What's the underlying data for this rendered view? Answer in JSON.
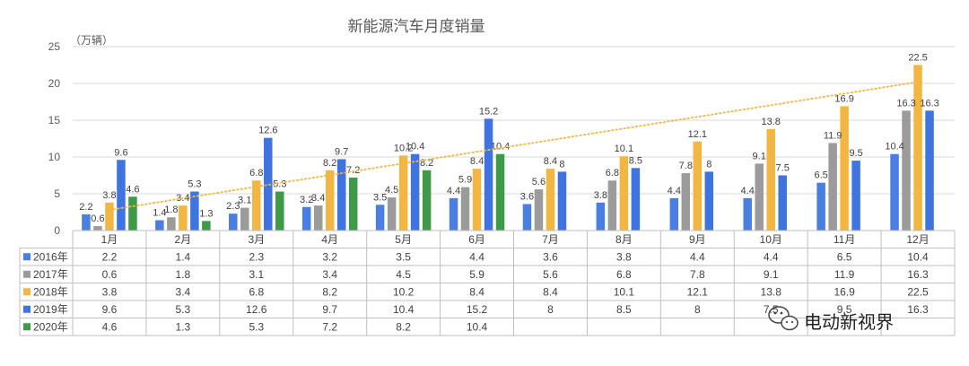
{
  "watermark": "电动新视界",
  "chart_data": {
    "type": "bar",
    "title": "新能源汽车月度销量",
    "ylabel": "（万辆）",
    "ylim": [
      0,
      25
    ],
    "yticks": [
      0,
      5,
      10,
      15,
      20,
      25
    ],
    "grid": true,
    "categories": [
      "1月",
      "2月",
      "3月",
      "4月",
      "5月",
      "6月",
      "7月",
      "8月",
      "9月",
      "10月",
      "11月",
      "12月"
    ],
    "series": [
      {
        "name": "2016年",
        "color": "#4a7ee0",
        "values": [
          2.2,
          1.4,
          2.3,
          3.2,
          3.5,
          4.4,
          3.6,
          3.8,
          4.4,
          4.4,
          6.5,
          10.4
        ],
        "labels": [
          "2.2",
          "1.4",
          "2.3",
          "3.2",
          "3.5",
          "4.4",
          "3.6",
          "3.8",
          "4.4",
          "4.4",
          "6.5",
          "10.4"
        ]
      },
      {
        "name": "2017年",
        "color": "#9b9b9b",
        "values": [
          0.6,
          1.8,
          3.1,
          3.4,
          4.5,
          5.9,
          5.6,
          6.8,
          7.8,
          9.1,
          11.9,
          16.3
        ],
        "labels": [
          "0.6",
          "1.8",
          "3.1",
          "3.4",
          "4.5",
          "5.9",
          "5.6",
          "6.8",
          "7.8",
          "9.1",
          "11.9",
          "16.3"
        ]
      },
      {
        "name": "2018年",
        "color": "#f2b642",
        "values": [
          3.8,
          3.4,
          6.8,
          8.2,
          10.2,
          8.4,
          8.4,
          10.1,
          12.1,
          13.8,
          16.9,
          22.5
        ],
        "labels": [
          "3.8",
          "3.4",
          "6.8",
          "8.2",
          "10.2",
          "8.4",
          "8.4",
          "10.1",
          "12.1",
          "13.8",
          "16.9",
          "22.5"
        ]
      },
      {
        "name": "2019年",
        "color": "#3f74e0",
        "values": [
          9.6,
          5.3,
          12.6,
          9.7,
          10.4,
          15.2,
          8,
          8.5,
          8,
          7.5,
          9.5,
          16.3
        ],
        "labels": [
          "9.6",
          "5.3",
          "12.6",
          "9.7",
          "10.4",
          "15.2",
          "8",
          "8.5",
          "8",
          "7.5",
          "9.5",
          "16.3"
        ]
      },
      {
        "name": "2020年",
        "color": "#3f9a48",
        "values": [
          4.6,
          1.3,
          5.3,
          7.2,
          8.2,
          10.4,
          null,
          null,
          null,
          null,
          null,
          null
        ],
        "labels": [
          "4.6",
          "1.3",
          "5.3",
          "7.2",
          "8.2",
          "10.4",
          "",
          "",
          "",
          "",
          "",
          ""
        ]
      }
    ],
    "trendline": {
      "color": "#f2b642",
      "style": "dotted",
      "from": 2.8,
      "to": 20.2
    },
    "data_table": {
      "rows": [
        [
          "2.2",
          "1.4",
          "2.3",
          "3.2",
          "3.5",
          "4.4",
          "3.6",
          "3.8",
          "4.4",
          "4.4",
          "6.5",
          "10.4"
        ],
        [
          "0.6",
          "1.8",
          "3.1",
          "3.4",
          "4.5",
          "5.9",
          "5.6",
          "6.8",
          "7.8",
          "9.1",
          "11.9",
          "16.3"
        ],
        [
          "3.8",
          "3.4",
          "6.8",
          "8.2",
          "10.2",
          "8.4",
          "8.4",
          "10.1",
          "12.1",
          "13.8",
          "16.9",
          "22.5"
        ],
        [
          "9.6",
          "5.3",
          "12.6",
          "9.7",
          "10.4",
          "15.2",
          "8",
          "8.5",
          "8",
          "7.5",
          "9.5",
          "16.3"
        ],
        [
          "4.6",
          "1.3",
          "5.3",
          "7.2",
          "8.2",
          "10.4",
          "",
          "",
          "",
          "",
          "",
          ""
        ]
      ]
    }
  }
}
